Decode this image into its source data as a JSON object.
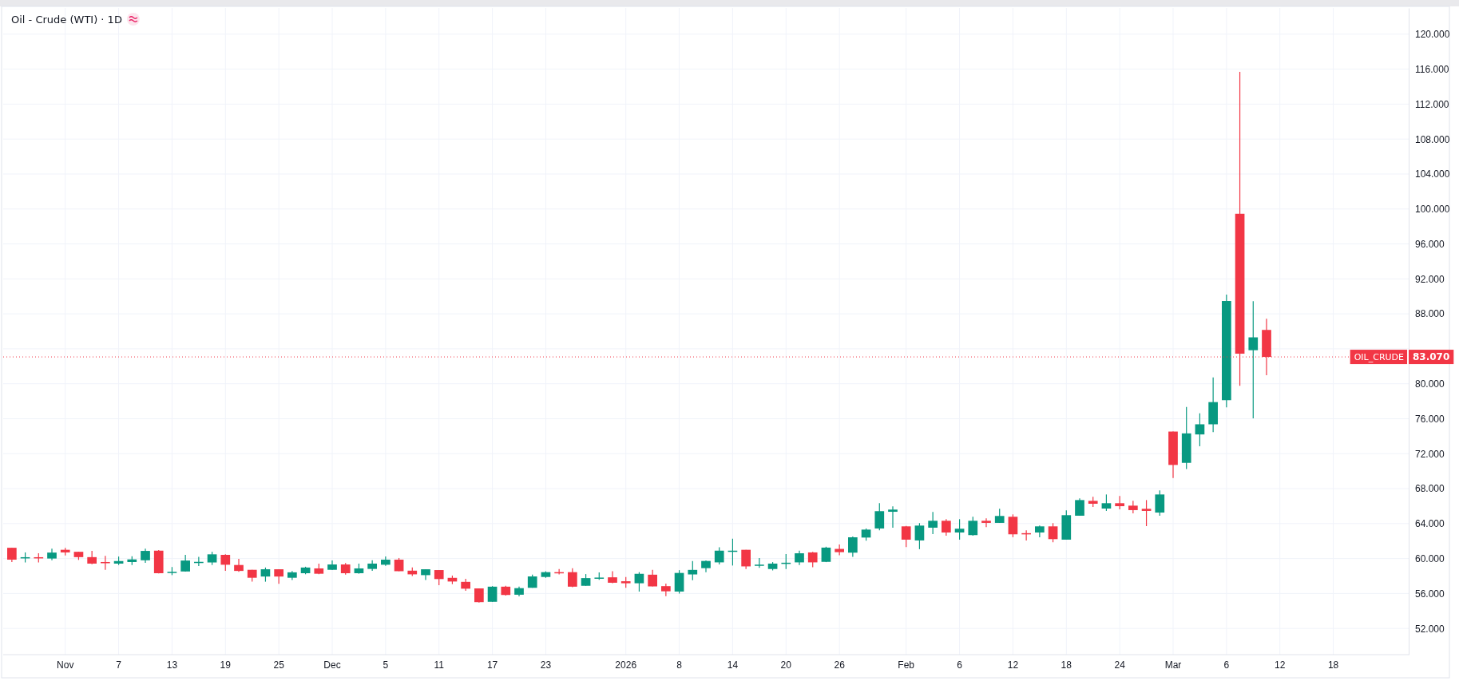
{
  "chart_data": {
    "type": "candlestick",
    "title": "Oil - Crude (WTI) · 1D",
    "categories": [
      null,
      null,
      null,
      null,
      "Nov",
      null,
      null,
      null,
      "7",
      null,
      null,
      null,
      "13",
      null,
      null,
      null,
      "19",
      null,
      null,
      null,
      "25",
      null,
      null,
      null,
      "Dec",
      null,
      null,
      null,
      "5",
      null,
      null,
      null,
      "11",
      null,
      null,
      null,
      "17",
      null,
      null,
      null,
      "23",
      null,
      null,
      null,
      null,
      null,
      "2026",
      null,
      null,
      null,
      "8",
      null,
      null,
      null,
      "14",
      null,
      null,
      null,
      "20",
      null,
      null,
      null,
      "26",
      null,
      null,
      null,
      null,
      "Feb",
      null,
      null,
      null,
      "6",
      null,
      null,
      null,
      "12",
      null,
      null,
      null,
      "18",
      null,
      null,
      null,
      "24",
      null,
      null,
      null,
      "Mar",
      null,
      null,
      null,
      "6",
      null,
      null,
      null,
      "12",
      null,
      null,
      null,
      "18",
      null,
      null,
      null,
      null,
      null
    ],
    "ohlc": [
      [
        61.23,
        61.23,
        59.6,
        59.87
      ],
      [
        60.1,
        60.7,
        59.55,
        60.15
      ],
      [
        60.15,
        60.6,
        59.55,
        60.1
      ],
      [
        60.0,
        61.13,
        59.8,
        60.68
      ],
      [
        61.0,
        61.23,
        60.35,
        60.7
      ],
      [
        60.77,
        60.77,
        59.84,
        60.16
      ],
      [
        60.16,
        60.87,
        59.35,
        59.42
      ],
      [
        59.6,
        60.3,
        58.7,
        59.5
      ],
      [
        59.42,
        60.23,
        59.26,
        59.71
      ],
      [
        59.6,
        60.26,
        59.26,
        59.9
      ],
      [
        59.8,
        61.13,
        59.5,
        60.87
      ],
      [
        60.9,
        60.97,
        58.3,
        58.32
      ],
      [
        58.35,
        59.03,
        58.1,
        58.48
      ],
      [
        58.52,
        60.42,
        58.5,
        59.77
      ],
      [
        59.55,
        60.2,
        59.13,
        59.62
      ],
      [
        59.55,
        60.77,
        59.26,
        60.48
      ],
      [
        60.42,
        60.48,
        58.6,
        59.29
      ],
      [
        59.26,
        59.97,
        58.48,
        58.58
      ],
      [
        58.71,
        58.71,
        57.35,
        57.8
      ],
      [
        57.94,
        58.97,
        57.35,
        58.77
      ],
      [
        58.77,
        58.77,
        57.1,
        57.94
      ],
      [
        57.8,
        58.58,
        57.55,
        58.42
      ],
      [
        58.32,
        59.06,
        58.2,
        58.97
      ],
      [
        58.87,
        59.42,
        58.2,
        58.26
      ],
      [
        58.71,
        59.77,
        58.68,
        59.32
      ],
      [
        59.32,
        59.48,
        58.16,
        58.32
      ],
      [
        58.32,
        59.42,
        58.26,
        58.87
      ],
      [
        58.81,
        59.81,
        58.6,
        59.42
      ],
      [
        59.29,
        60.23,
        59.16,
        59.87
      ],
      [
        59.87,
        60.06,
        58.55,
        58.55
      ],
      [
        58.61,
        58.97,
        58.0,
        58.19
      ],
      [
        58.1,
        58.77,
        57.55,
        58.77
      ],
      [
        58.68,
        58.68,
        56.94,
        57.65
      ],
      [
        57.79,
        58.05,
        57.07,
        57.37
      ],
      [
        57.33,
        57.69,
        56.32,
        56.55
      ],
      [
        56.58,
        56.58,
        54.95,
        55.01
      ],
      [
        55.05,
        56.84,
        55.05,
        56.78
      ],
      [
        56.78,
        56.88,
        55.76,
        55.83
      ],
      [
        55.86,
        56.78,
        55.67,
        56.61
      ],
      [
        56.65,
        58.15,
        56.65,
        57.95
      ],
      [
        57.89,
        58.54,
        57.79,
        58.44
      ],
      [
        58.44,
        58.8,
        58.18,
        58.4
      ],
      [
        58.44,
        58.9,
        56.71,
        56.78
      ],
      [
        56.88,
        58.22,
        56.88,
        57.76
      ],
      [
        57.7,
        58.41,
        57.56,
        57.82
      ],
      [
        57.85,
        58.54,
        57.17,
        57.23
      ],
      [
        57.4,
        57.89,
        56.65,
        57.17
      ],
      [
        57.17,
        58.44,
        56.22,
        58.25
      ],
      [
        58.15,
        58.7,
        56.81,
        56.81
      ],
      [
        56.84,
        57.14,
        55.7,
        56.25
      ],
      [
        56.22,
        58.67,
        55.99,
        58.35
      ],
      [
        58.18,
        59.72,
        57.53,
        58.7
      ],
      [
        58.9,
        59.78,
        58.44,
        59.72
      ],
      [
        59.56,
        61.29,
        59.33,
        60.9
      ],
      [
        60.85,
        62.27,
        59.2,
        60.9
      ],
      [
        61.0,
        61.0,
        58.8,
        59.1
      ],
      [
        59.26,
        60.05,
        58.93,
        59.3
      ],
      [
        58.8,
        59.59,
        58.64,
        59.42
      ],
      [
        59.39,
        60.5,
        58.8,
        59.52
      ],
      [
        59.56,
        60.9,
        59.26,
        60.6
      ],
      [
        60.7,
        60.77,
        59.0,
        59.56
      ],
      [
        59.62,
        61.35,
        59.59,
        61.25
      ],
      [
        61.1,
        61.6,
        60.37,
        60.73
      ],
      [
        60.67,
        62.53,
        60.2,
        62.43
      ],
      [
        62.4,
        63.44,
        62.04,
        63.31
      ],
      [
        63.44,
        66.33,
        63.23,
        65.42
      ],
      [
        65.35,
        65.96,
        63.53,
        65.6
      ],
      [
        63.68,
        63.74,
        61.31,
        62.16
      ],
      [
        62.07,
        64.05,
        61.07,
        63.77
      ],
      [
        63.53,
        65.33,
        62.8,
        64.32
      ],
      [
        64.32,
        64.5,
        62.62,
        62.98
      ],
      [
        62.98,
        64.5,
        62.16,
        63.41
      ],
      [
        62.68,
        64.78,
        62.62,
        64.32
      ],
      [
        64.32,
        64.6,
        63.59,
        64.08
      ],
      [
        64.08,
        65.69,
        64.08,
        64.87
      ],
      [
        64.78,
        65.05,
        62.44,
        62.77
      ],
      [
        62.9,
        63.23,
        62.07,
        62.83
      ],
      [
        62.98,
        63.77,
        62.44,
        63.68
      ],
      [
        63.68,
        64.05,
        61.86,
        62.22
      ],
      [
        62.16,
        65.51,
        62.16,
        64.96
      ],
      [
        64.9,
        66.88,
        64.9,
        66.69
      ],
      [
        66.6,
        67.06,
        65.9,
        66.27
      ],
      [
        65.72,
        67.33,
        65.45,
        66.33
      ],
      [
        66.33,
        67.15,
        65.63,
        65.99
      ],
      [
        66.05,
        66.6,
        65.17,
        65.54
      ],
      [
        65.69,
        66.69,
        63.71,
        65.45
      ],
      [
        65.26,
        67.79,
        64.9,
        67.33
      ],
      [
        74.53,
        74.53,
        69.21,
        70.71
      ],
      [
        70.95,
        77.35,
        70.25,
        74.32
      ],
      [
        74.2,
        76.62,
        72.85,
        75.36
      ],
      [
        75.36,
        80.72,
        74.47,
        77.9
      ],
      [
        78.12,
        90.2,
        77.29,
        89.47
      ],
      [
        99.45,
        115.69,
        79.77,
        83.44
      ],
      [
        83.84,
        89.44,
        76.04,
        85.31
      ],
      [
        86.16,
        87.45,
        80.97,
        83.07
      ],
      null,
      null,
      null,
      null,
      null,
      null,
      null,
      null,
      null,
      null
    ],
    "colors": [
      "#f23645",
      "#089981",
      "#f23645",
      "#089981",
      "#f23645",
      "#f23645",
      "#f23645",
      "#f23645",
      "#089981",
      "#089981",
      "#089981",
      "#f23645",
      "#089981",
      "#089981",
      "#089981",
      "#089981",
      "#f23645",
      "#f23645",
      "#f23645",
      "#089981",
      "#f23645",
      "#089981",
      "#089981",
      "#f23645",
      "#089981",
      "#f23645",
      "#089981",
      "#089981",
      "#089981",
      "#f23645",
      "#f23645",
      "#089981",
      "#f23645",
      "#f23645",
      "#f23645",
      "#f23645",
      "#089981",
      "#f23645",
      "#089981",
      "#089981",
      "#089981",
      "#f23645",
      "#f23645",
      "#089981",
      "#089981",
      "#f23645",
      "#f23645",
      "#089981",
      "#f23645",
      "#f23645",
      "#089981",
      "#089981",
      "#089981",
      "#089981",
      "#089981",
      "#f23645",
      "#089981",
      "#089981",
      "#089981",
      "#089981",
      "#f23645",
      "#089981",
      "#f23645",
      "#089981",
      "#089981",
      "#089981",
      "#089981",
      "#f23645",
      "#089981",
      "#089981",
      "#f23645",
      "#089981",
      "#089981",
      "#f23645",
      "#089981",
      "#f23645",
      "#f23645",
      "#089981",
      "#f23645",
      "#089981",
      "#089981",
      "#f23645",
      "#089981",
      "#f23645",
      "#f23645",
      "#f23645",
      "#089981",
      "#f23645",
      "#089981",
      "#089981",
      "#089981",
      "#089981",
      "#f23645",
      "#089981",
      "#f23645",
      null,
      null,
      null,
      null,
      null,
      null,
      null,
      null,
      null,
      null
    ],
    "ylim": [
      49,
      123
    ],
    "yticks": [
      {
        "value": 52,
        "label": "52.000"
      },
      {
        "value": 56,
        "label": "56.000"
      },
      {
        "value": 60,
        "label": "60.000"
      },
      {
        "value": 64,
        "label": "64.000"
      },
      {
        "value": 68,
        "label": "68.000"
      },
      {
        "value": 72,
        "label": "72.000"
      },
      {
        "value": 76,
        "label": "76.000"
      },
      {
        "value": 80,
        "label": "80.000"
      },
      {
        "value": 84,
        "label": null
      },
      {
        "value": 88,
        "label": "88.000"
      },
      {
        "value": 92,
        "label": "92.000"
      },
      {
        "value": 96,
        "label": "96.000"
      },
      {
        "value": 100,
        "label": "100.000"
      },
      {
        "value": 104,
        "label": "104.000"
      },
      {
        "value": 108,
        "label": "108.000"
      },
      {
        "value": 112,
        "label": "112.000"
      },
      {
        "value": 116,
        "label": "116.000"
      },
      {
        "value": 120,
        "label": "120.000"
      }
    ],
    "grid": true,
    "ref_lines": [
      {
        "axis": "y",
        "value": 83.07,
        "label": "OIL_CRUDE",
        "color": "#f23645",
        "line_style": "dotted"
      }
    ],
    "annotations": [
      "83.070"
    ]
  }
}
